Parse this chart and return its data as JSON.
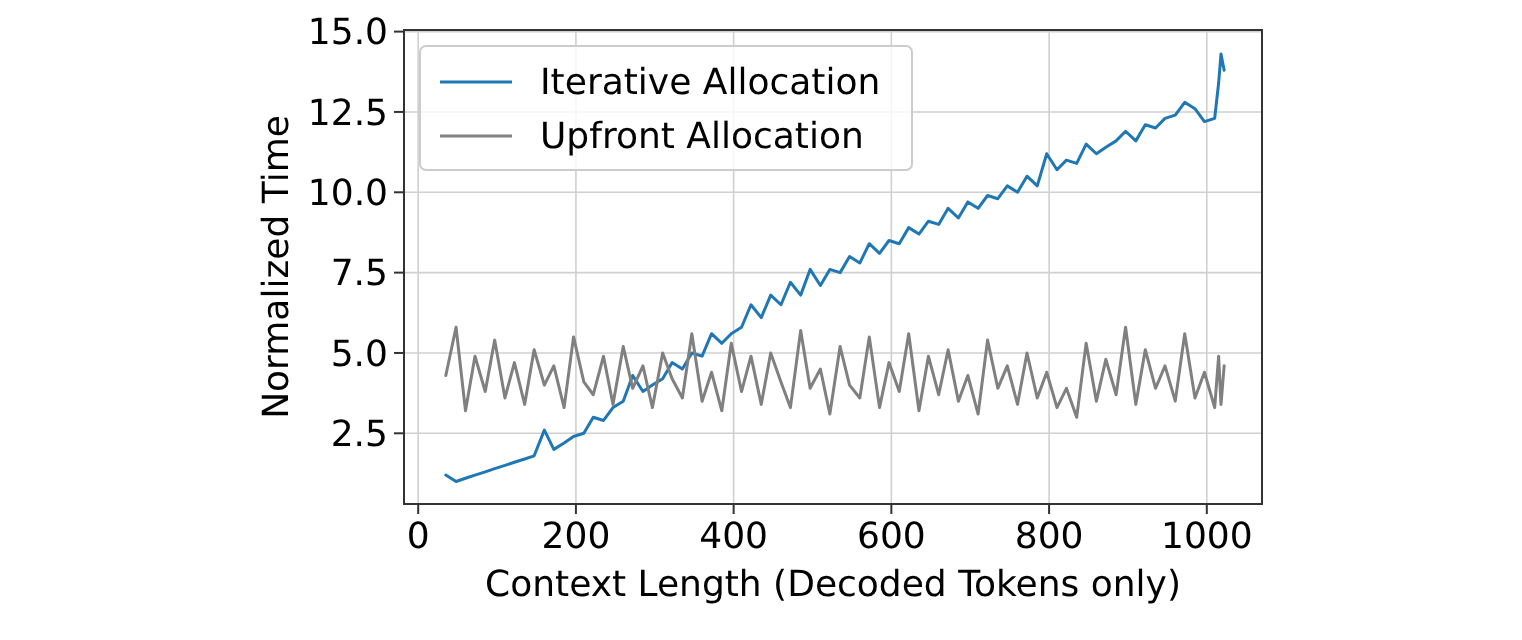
{
  "chart_data": {
    "type": "line",
    "xlabel": "Context Length (Decoded Tokens only)",
    "ylabel": "Normalized Time",
    "x": [
      35,
      48,
      60,
      72,
      85,
      97,
      110,
      122,
      135,
      147,
      160,
      172,
      185,
      197,
      210,
      222,
      235,
      247,
      260,
      272,
      285,
      297,
      310,
      322,
      335,
      347,
      360,
      372,
      385,
      397,
      410,
      422,
      435,
      447,
      460,
      472,
      485,
      497,
      510,
      522,
      535,
      547,
      560,
      572,
      585,
      597,
      610,
      622,
      635,
      647,
      660,
      672,
      685,
      697,
      710,
      722,
      735,
      747,
      760,
      772,
      785,
      797,
      810,
      822,
      835,
      847,
      860,
      872,
      885,
      897,
      910,
      922,
      935,
      947,
      960,
      972,
      985,
      997,
      1010,
      1015,
      1018,
      1022
    ],
    "series": [
      {
        "name": "Iterative Allocation",
        "color": "#1f77b4",
        "values": [
          1.2,
          1.0,
          1.1,
          1.2,
          1.3,
          1.4,
          1.5,
          1.6,
          1.7,
          1.8,
          2.6,
          2.0,
          2.2,
          2.4,
          2.5,
          3.0,
          2.9,
          3.3,
          3.5,
          4.3,
          3.8,
          4.0,
          4.2,
          4.7,
          4.5,
          5.0,
          4.9,
          5.6,
          5.3,
          5.6,
          5.8,
          6.5,
          6.1,
          6.8,
          6.5,
          7.2,
          6.8,
          7.6,
          7.1,
          7.6,
          7.5,
          8.0,
          7.8,
          8.4,
          8.1,
          8.5,
          8.4,
          8.9,
          8.7,
          9.1,
          9.0,
          9.5,
          9.2,
          9.7,
          9.5,
          9.9,
          9.8,
          10.2,
          10.0,
          10.5,
          10.2,
          11.2,
          10.7,
          11.0,
          10.9,
          11.5,
          11.2,
          11.4,
          11.6,
          11.9,
          11.6,
          12.1,
          12.0,
          12.3,
          12.4,
          12.8,
          12.6,
          12.2,
          12.3,
          13.4,
          14.3,
          13.8
        ]
      },
      {
        "name": "Upfront Allocation",
        "color": "#808080",
        "values": [
          4.3,
          5.8,
          3.2,
          4.9,
          3.8,
          5.4,
          3.6,
          4.7,
          3.4,
          5.1,
          4.0,
          4.6,
          3.3,
          5.5,
          4.1,
          3.7,
          4.9,
          3.4,
          5.2,
          3.9,
          4.6,
          3.3,
          5.0,
          4.2,
          3.6,
          5.6,
          3.5,
          4.4,
          3.2,
          5.3,
          3.8,
          4.9,
          3.4,
          5.0,
          4.1,
          3.3,
          5.7,
          3.9,
          4.5,
          3.1,
          5.2,
          4.0,
          3.6,
          5.5,
          3.3,
          4.7,
          3.8,
          5.6,
          3.2,
          4.9,
          3.7,
          5.1,
          3.5,
          4.3,
          3.1,
          5.4,
          3.9,
          4.6,
          3.4,
          5.0,
          3.6,
          4.4,
          3.3,
          3.9,
          3.0,
          5.3,
          3.5,
          4.8,
          3.7,
          5.8,
          3.4,
          5.1,
          3.9,
          4.6,
          3.5,
          5.6,
          3.6,
          4.4,
          3.3,
          4.9,
          3.4,
          4.6
        ]
      }
    ],
    "xlim": [
      -18,
      1070
    ],
    "ylim": [
      0.3,
      15.05
    ],
    "xticks": [
      0,
      200,
      400,
      600,
      800,
      1000
    ],
    "yticks": [
      {
        "value": 2.5,
        "label": "2.5"
      },
      {
        "value": 5,
        "label": "5.0"
      },
      {
        "value": 7.5,
        "label": "7.5"
      },
      {
        "value": 10,
        "label": "10.0"
      },
      {
        "value": 12.5,
        "label": "12.5"
      },
      {
        "value": 15,
        "label": "15.0"
      }
    ],
    "grid": true,
    "legend": "top left",
    "line_style": "solid",
    "marker": "none"
  }
}
